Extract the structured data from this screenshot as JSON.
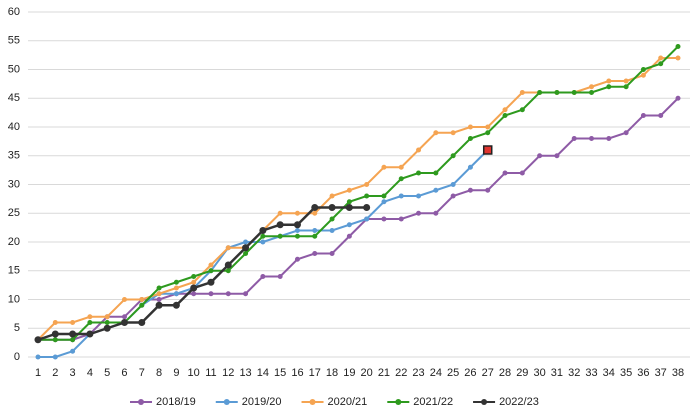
{
  "chart_data": {
    "type": "line",
    "categories": [
      1,
      2,
      3,
      4,
      5,
      6,
      7,
      8,
      9,
      10,
      11,
      12,
      13,
      14,
      15,
      16,
      17,
      18,
      19,
      20,
      21,
      22,
      23,
      24,
      25,
      26,
      27,
      28,
      29,
      30,
      31,
      32,
      33,
      34,
      35,
      36,
      37,
      38
    ],
    "ylim": [
      0,
      60
    ],
    "yticks": [
      0,
      5,
      10,
      15,
      20,
      25,
      30,
      35,
      40,
      45,
      50,
      55,
      60
    ],
    "grid": true,
    "legend": "bottom",
    "series": [
      {
        "name": "2018/19",
        "color": "#8e5ba6",
        "values": [
          3,
          3,
          3,
          4,
          7,
          7,
          10,
          10,
          11,
          11,
          11,
          11,
          11,
          14,
          14,
          17,
          18,
          18,
          21,
          24,
          24,
          24,
          25,
          25,
          28,
          29,
          29,
          32,
          32,
          35,
          35,
          38,
          38,
          38,
          39,
          42,
          42,
          45
        ]
      },
      {
        "name": "2019/20",
        "color": "#5b9bd5",
        "last_point_color": "#e0342f",
        "values": [
          0,
          0,
          1,
          4,
          5,
          6,
          9,
          11,
          11,
          12,
          15,
          19,
          20,
          20,
          21,
          22,
          22,
          22,
          23,
          24,
          27,
          28,
          28,
          29,
          30,
          33,
          36,
          null,
          null,
          null,
          null,
          null,
          null,
          null,
          null,
          null,
          null,
          null
        ]
      },
      {
        "name": "2020/21",
        "color": "#f5a452",
        "values": [
          3,
          6,
          6,
          7,
          7,
          10,
          10,
          11,
          12,
          13,
          16,
          19,
          19,
          22,
          25,
          25,
          25,
          28,
          29,
          30,
          33,
          33,
          36,
          39,
          39,
          40,
          40,
          43,
          46,
          46,
          46,
          46,
          47,
          48,
          48,
          49,
          52,
          52
        ]
      },
      {
        "name": "2021/22",
        "color": "#2e9a1e",
        "values": [
          3,
          3,
          3,
          6,
          6,
          6,
          9,
          12,
          13,
          14,
          15,
          15,
          18,
          21,
          21,
          21,
          21,
          24,
          27,
          28,
          28,
          31,
          32,
          32,
          35,
          38,
          39,
          42,
          43,
          46,
          46,
          46,
          46,
          47,
          47,
          50,
          51,
          54
        ]
      },
      {
        "name": "2022/23",
        "color": "#333333",
        "values": [
          3,
          4,
          4,
          4,
          5,
          6,
          6,
          9,
          9,
          12,
          13,
          16,
          19,
          22,
          23,
          23,
          26,
          26,
          26,
          26,
          null,
          null,
          null,
          null,
          null,
          null,
          null,
          null,
          null,
          null,
          null,
          null,
          null,
          null,
          null,
          null,
          null,
          null
        ]
      }
    ]
  }
}
